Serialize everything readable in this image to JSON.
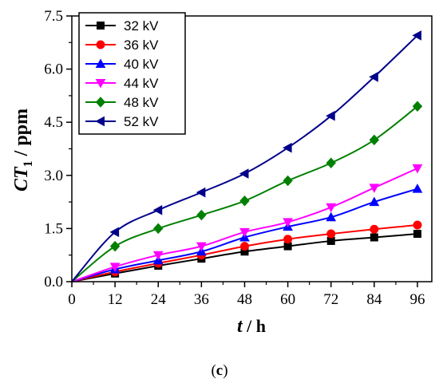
{
  "caption": "(c)",
  "chart_data": {
    "type": "line",
    "xlabel": {
      "main": "t",
      "unit": " / h"
    },
    "ylabel": {
      "main": "CT",
      "sub": "1",
      "unit": " / ppm"
    },
    "x": [
      0,
      12,
      24,
      36,
      48,
      60,
      72,
      84,
      96
    ],
    "xticks": [
      "0",
      "12",
      "24",
      "36",
      "48",
      "60",
      "72",
      "84",
      "96"
    ],
    "yticks": [
      "0.0",
      "1.5",
      "3.0",
      "4.5",
      "6.0",
      "7.5"
    ],
    "xlim": [
      0,
      100
    ],
    "ylim": [
      0,
      7.5
    ],
    "legend_position": "top-left",
    "series": [
      {
        "name": "32 kV",
        "color": "#000000",
        "marker": "square",
        "values": [
          0,
          0.23,
          0.45,
          0.65,
          0.85,
          1.0,
          1.15,
          1.25,
          1.35
        ]
      },
      {
        "name": "36 kV",
        "color": "#ff0000",
        "marker": "circle",
        "values": [
          0,
          0.28,
          0.52,
          0.75,
          1.0,
          1.2,
          1.35,
          1.48,
          1.6
        ]
      },
      {
        "name": "40 kV",
        "color": "#0000ff",
        "marker": "triangle-up",
        "values": [
          0,
          0.35,
          0.6,
          0.85,
          1.25,
          1.55,
          1.82,
          2.25,
          2.62
        ]
      },
      {
        "name": "44 kV",
        "color": "#ff00ff",
        "marker": "triangle-down",
        "values": [
          0,
          0.42,
          0.75,
          1.0,
          1.4,
          1.68,
          2.1,
          2.65,
          3.2
        ]
      },
      {
        "name": "48 kV",
        "color": "#008000",
        "marker": "diamond",
        "values": [
          0,
          1.0,
          1.5,
          1.88,
          2.28,
          2.85,
          3.35,
          4.0,
          4.95
        ]
      },
      {
        "name": "52 kV",
        "color": "#00008b",
        "marker": "triangle-left",
        "values": [
          0,
          1.4,
          2.02,
          2.52,
          3.05,
          3.78,
          4.68,
          5.78,
          6.95
        ]
      }
    ]
  }
}
